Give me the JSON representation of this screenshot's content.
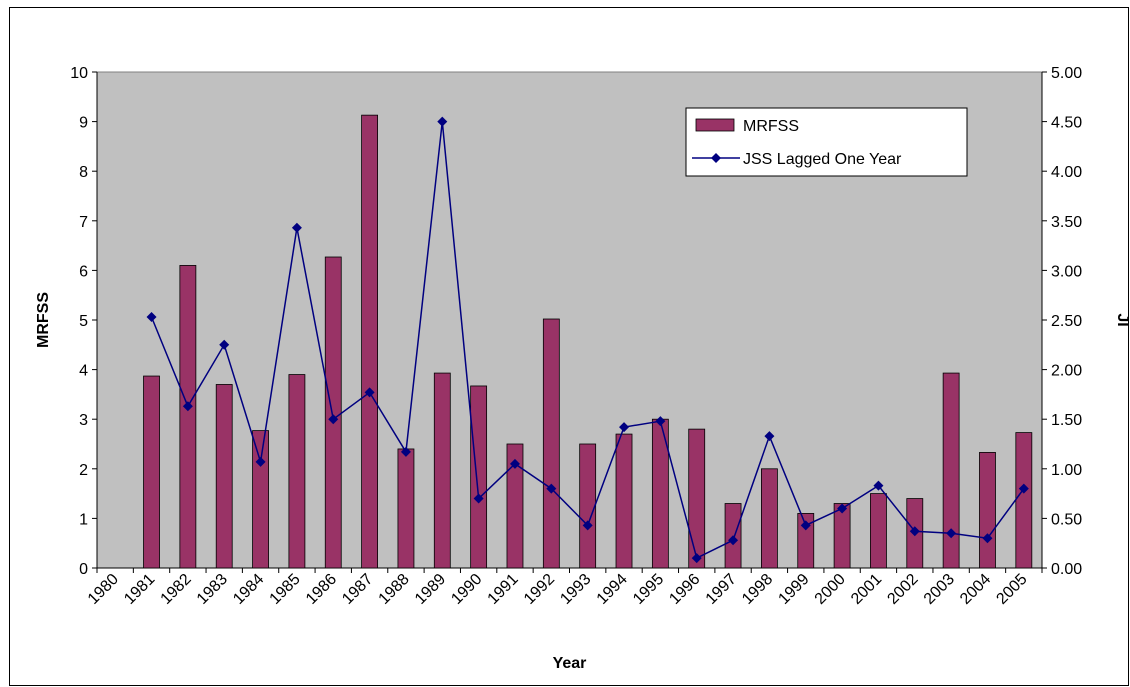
{
  "chart_data": {
    "type": "bar_line",
    "categories": [
      "1980",
      "1981",
      "1982",
      "1983",
      "1984",
      "1985",
      "1986",
      "1987",
      "1988",
      "1989",
      "1990",
      "1991",
      "1992",
      "1993",
      "1994",
      "1995",
      "1996",
      "1997",
      "1998",
      "1999",
      "2000",
      "2001",
      "2002",
      "2003",
      "2004",
      "2005"
    ],
    "series": [
      {
        "name": "MRFSS",
        "type": "bar",
        "color": "#993366",
        "values": [
          null,
          3.87,
          6.1,
          3.7,
          2.77,
          3.9,
          6.27,
          9.13,
          2.4,
          3.93,
          3.67,
          2.5,
          5.02,
          2.5,
          2.7,
          3.0,
          2.8,
          1.3,
          2.0,
          1.1,
          1.3,
          1.5,
          1.4,
          3.93,
          2.33,
          2.73
        ]
      },
      {
        "name": "JSS Lagged One Year",
        "type": "line",
        "axis": "y2",
        "color": "#000080",
        "values": [
          null,
          2.53,
          1.63,
          2.25,
          1.07,
          3.43,
          1.5,
          1.77,
          1.17,
          4.5,
          0.7,
          1.05,
          0.8,
          0.43,
          1.42,
          1.48,
          0.1,
          0.28,
          1.33,
          0.43,
          0.6,
          0.83,
          0.37,
          0.35,
          0.3,
          0.8
        ]
      }
    ],
    "x_label": "Year",
    "y_label": "MRFSS",
    "y2_label": "JI",
    "ylim": [
      0,
      10
    ],
    "yticks": [
      0,
      1,
      2,
      3,
      4,
      5,
      6,
      7,
      8,
      9,
      10
    ],
    "y2lim": [
      0,
      5
    ],
    "y2ticks": [
      {
        "value": 0,
        "label": "0.00"
      },
      {
        "value": 0.5,
        "label": "0.50"
      },
      {
        "value": 1,
        "label": "1.00"
      },
      {
        "value": 1.5,
        "label": "1.50"
      },
      {
        "value": 2,
        "label": "2.00"
      },
      {
        "value": 2.5,
        "label": "2.50"
      },
      {
        "value": 3,
        "label": "3.00"
      },
      {
        "value": 3.5,
        "label": "3.50"
      },
      {
        "value": 4,
        "label": "4.00"
      },
      {
        "value": 4.5,
        "label": "4.50"
      },
      {
        "value": 5,
        "label": "5.00"
      }
    ],
    "legend": "upper-right",
    "plot_background": "#c0c0c0"
  }
}
